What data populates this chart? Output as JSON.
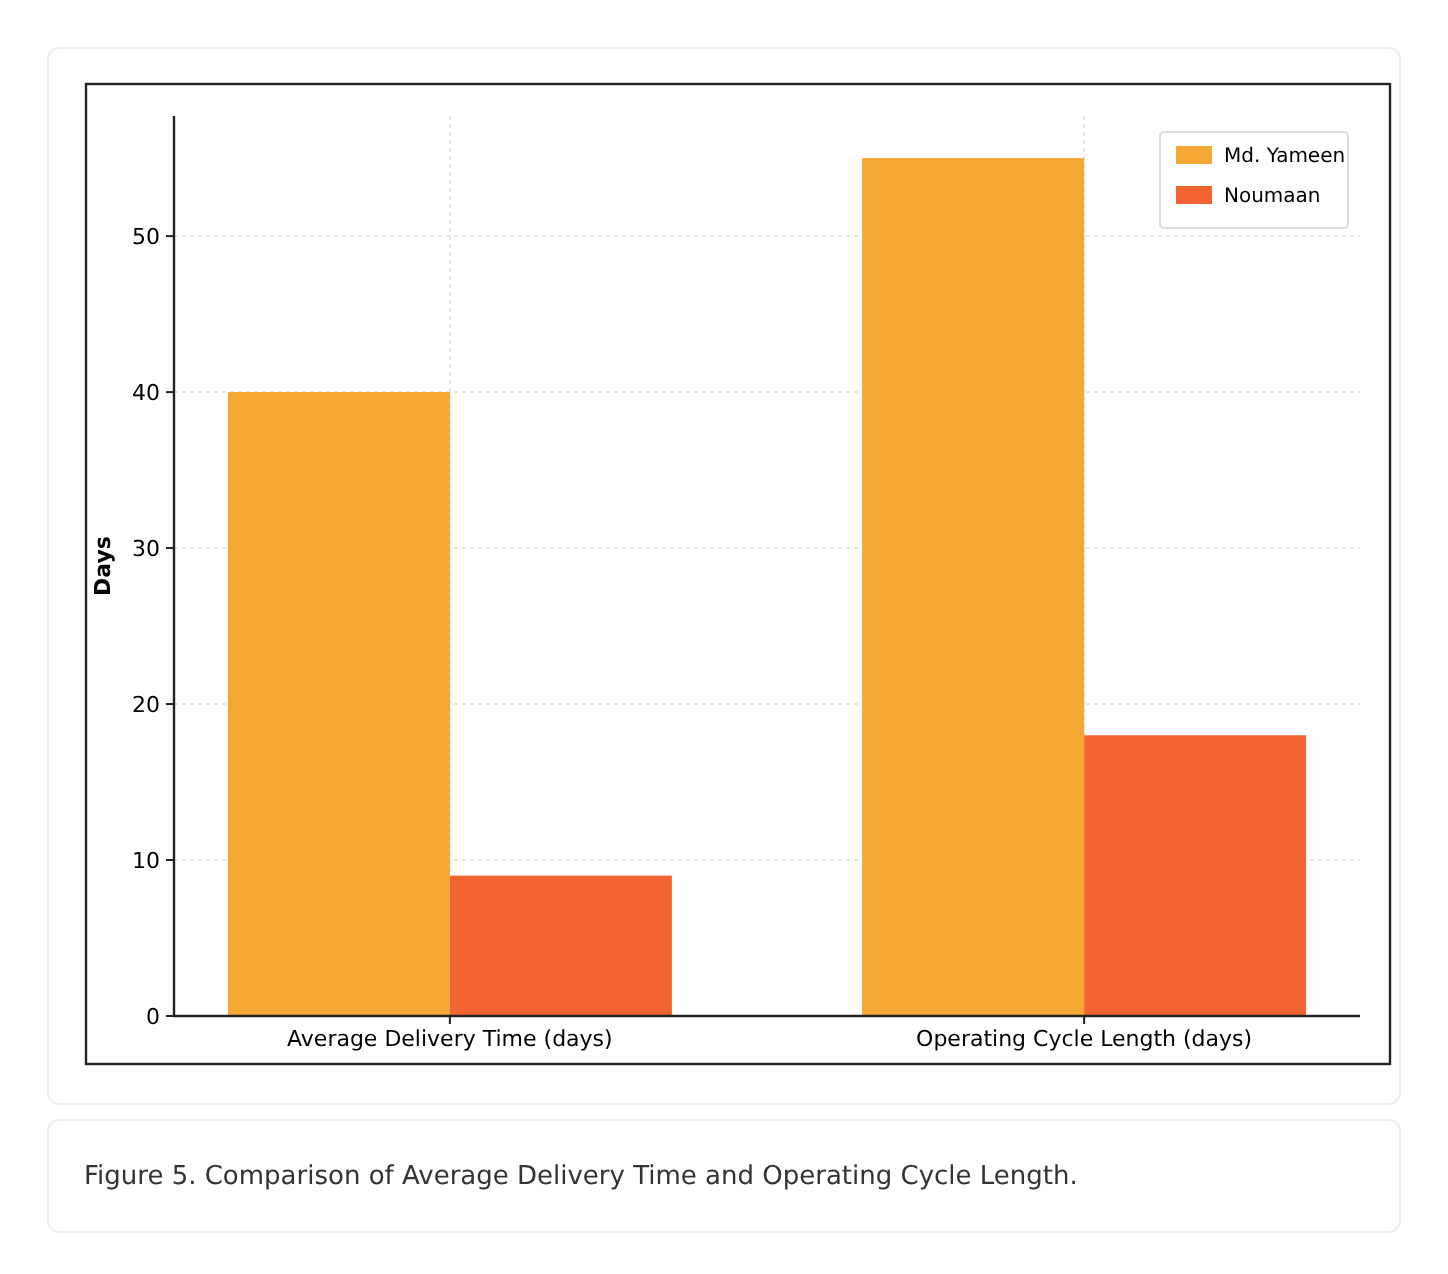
{
  "chart_data": {
    "type": "bar",
    "ylabel": "Days",
    "categories": [
      "Average Delivery Time (days)",
      "Operating Cycle Length (days)"
    ],
    "series": [
      {
        "name": "Md. Yameen",
        "color": "#f5a733",
        "values": [
          40,
          55
        ]
      },
      {
        "name": "Noumaan",
        "color": "#f26532",
        "values": [
          9,
          18
        ]
      }
    ],
    "ylim": [
      0,
      57.7
    ],
    "yticks": [
      0,
      10,
      20,
      30,
      40,
      50
    ],
    "grid": true,
    "legend": "top right",
    "annotations": [
      "Figure 5. Comparison of Average Delivery Time and Operating Cycle Length."
    ]
  }
}
